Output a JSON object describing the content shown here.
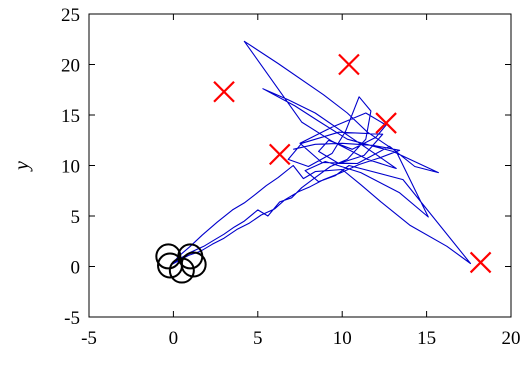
{
  "chart_data": {
    "type": "scatter",
    "title": "",
    "xlabel": "",
    "ylabel": "y",
    "xlim": [
      -5,
      20
    ],
    "ylim": [
      -5,
      25
    ],
    "xticks": [
      "-5",
      "0",
      "5",
      "10",
      "15",
      "20"
    ],
    "yticks": [
      "-5",
      "0",
      "5",
      "10",
      "15",
      "20",
      "25"
    ],
    "grid": false,
    "legend": "none",
    "series": [
      {
        "marker": "circle",
        "color": "#000000",
        "points": [
          [
            -0.3,
            1.0
          ],
          [
            1.0,
            1.0
          ],
          [
            -0.2,
            0.1
          ],
          [
            1.2,
            0.2
          ],
          [
            0.5,
            -0.4
          ]
        ]
      },
      {
        "marker": "x",
        "color": "#ff0000",
        "points": [
          [
            3.0,
            17.3
          ],
          [
            10.4,
            20.0
          ],
          [
            12.6,
            14.2
          ],
          [
            6.3,
            11.1
          ],
          [
            18.2,
            0.4
          ]
        ]
      },
      {
        "marker": "line",
        "color": "#0000cc",
        "points": [
          [
            0.0,
            0.4
          ],
          [
            1.0,
            1.4
          ],
          [
            1.8,
            2.0
          ],
          [
            2.4,
            2.6
          ],
          [
            3.0,
            3.2
          ],
          [
            3.6,
            3.9
          ],
          [
            4.2,
            4.5
          ],
          [
            5.0,
            5.6
          ],
          [
            5.6,
            5.0
          ],
          [
            6.3,
            6.4
          ],
          [
            7.0,
            6.8
          ],
          [
            7.6,
            7.8
          ],
          [
            8.4,
            8.8
          ],
          [
            9.3,
            9.9
          ],
          [
            10.3,
            10.6
          ],
          [
            11.4,
            12.6
          ],
          [
            11.7,
            15.4
          ],
          [
            11.0,
            16.8
          ],
          [
            10.2,
            13.4
          ],
          [
            9.4,
            11.2
          ],
          [
            8.0,
            9.9
          ],
          [
            6.8,
            10.6
          ],
          [
            7.6,
            12.2
          ],
          [
            9.8,
            13.3
          ],
          [
            12.4,
            13.1
          ],
          [
            11.3,
            11.0
          ],
          [
            9.8,
            10.2
          ],
          [
            8.6,
            11.4
          ],
          [
            9.2,
            12.5
          ],
          [
            10.6,
            11.6
          ],
          [
            12.0,
            12.8
          ],
          [
            12.6,
            14.0
          ],
          [
            11.4,
            15.2
          ],
          [
            9.4,
            13.8
          ],
          [
            7.5,
            12.2
          ],
          [
            8.8,
            10.3
          ],
          [
            10.9,
            10.2
          ],
          [
            12.8,
            11.9
          ],
          [
            14.3,
            9.9
          ],
          [
            15.7,
            9.3
          ],
          [
            13.0,
            11.4
          ],
          [
            10.3,
            12.6
          ],
          [
            8.6,
            14.4
          ],
          [
            7.2,
            15.9
          ],
          [
            5.3,
            17.6
          ],
          [
            6.8,
            16.5
          ],
          [
            8.4,
            15.2
          ],
          [
            10.4,
            12.9
          ],
          [
            12.0,
            11.1
          ],
          [
            13.2,
            9.7
          ],
          [
            11.5,
            10.6
          ],
          [
            9.4,
            12.4
          ],
          [
            7.6,
            14.3
          ],
          [
            4.2,
            22.3
          ],
          [
            6.2,
            20.1
          ],
          [
            8.9,
            17.0
          ],
          [
            10.3,
            15.2
          ],
          [
            11.5,
            13.3
          ],
          [
            13.2,
            11.4
          ],
          [
            15.1,
            4.9
          ],
          [
            13.4,
            7.3
          ],
          [
            11.1,
            9.3
          ],
          [
            9.0,
            10.4
          ],
          [
            7.8,
            9.5
          ],
          [
            8.6,
            8.4
          ],
          [
            9.6,
            9.0
          ],
          [
            10.4,
            10.0
          ],
          [
            13.6,
            8.6
          ],
          [
            17.6,
            0.3
          ],
          [
            16.2,
            2.0
          ],
          [
            14.0,
            4.1
          ],
          [
            12.3,
            6.4
          ],
          [
            11.1,
            8.1
          ],
          [
            10.0,
            9.6
          ],
          [
            8.4,
            9.4
          ],
          [
            7.7,
            8.7
          ],
          [
            7.1,
            10.0
          ],
          [
            6.2,
            8.8
          ],
          [
            5.5,
            8.0
          ],
          [
            4.9,
            7.2
          ],
          [
            4.2,
            6.3
          ],
          [
            3.5,
            5.6
          ],
          [
            2.6,
            4.4
          ],
          [
            1.7,
            3.1
          ],
          [
            1.0,
            2.0
          ],
          [
            0.3,
            1.0
          ],
          [
            -0.1,
            0.2
          ],
          [
            0.9,
            1.1
          ],
          [
            1.6,
            1.5
          ],
          [
            2.3,
            2.2
          ],
          [
            3.0,
            2.8
          ],
          [
            3.8,
            3.7
          ],
          [
            4.5,
            4.3
          ],
          [
            5.2,
            5.1
          ],
          [
            6.0,
            5.7
          ],
          [
            6.6,
            6.6
          ],
          [
            7.4,
            7.4
          ],
          [
            8.1,
            7.9
          ],
          [
            8.9,
            8.6
          ],
          [
            9.8,
            9.2
          ],
          [
            11.0,
            10.1
          ],
          [
            12.3,
            10.8
          ],
          [
            13.4,
            11.5
          ],
          [
            11.8,
            12.0
          ],
          [
            10.0,
            12.2
          ],
          [
            8.4,
            12.1
          ],
          [
            7.1,
            11.6
          ]
        ]
      }
    ]
  }
}
